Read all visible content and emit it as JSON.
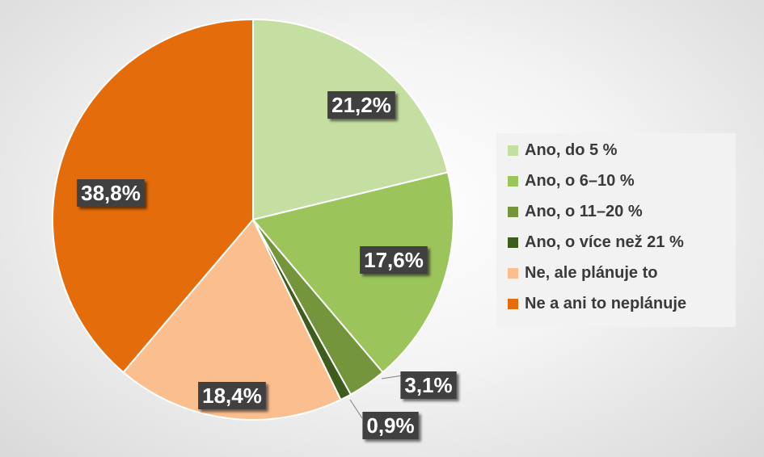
{
  "chart_data": {
    "type": "pie",
    "categories": [
      "Ano, do 5 %",
      "Ano, o 6–10 %",
      "Ano, o 11–20 %",
      "Ano, o více než 21 %",
      "Ne, ale plánuje to",
      "Ne a ani to neplánuje"
    ],
    "values": [
      21.2,
      17.6,
      3.1,
      0.9,
      18.4,
      38.8
    ],
    "labels": [
      "21,2%",
      "17,6%",
      "3,1%",
      "0,9%",
      "18,4%",
      "38,8%"
    ],
    "colors": [
      "#c5dfa2",
      "#9bc45b",
      "#75953c",
      "#3f5c1f",
      "#fbbf8f",
      "#e46c0a"
    ],
    "title": "",
    "legend_position": "right"
  }
}
